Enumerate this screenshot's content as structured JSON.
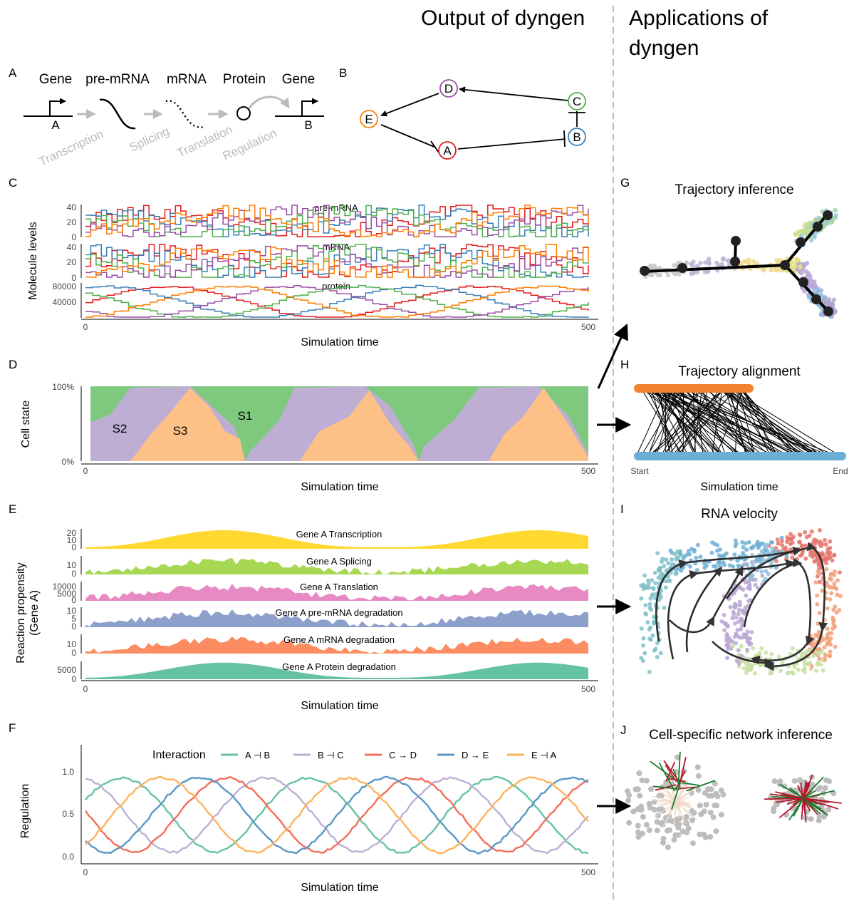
{
  "headers": {
    "output": "Output of dyngen",
    "applications_line1": "Applications of",
    "applications_line2": "dyngen"
  },
  "panel_letters": {
    "A": "A",
    "B": "B",
    "C": "C",
    "D": "D",
    "E": "E",
    "F": "F",
    "G": "G",
    "H": "H",
    "I": "I",
    "J": "J"
  },
  "panel_a": {
    "stages": [
      "Gene",
      "pre-mRNA",
      "mRNA",
      "Protein",
      "Gene"
    ],
    "steps": [
      "Transcription",
      "Splicing",
      "Translation",
      "Regulation"
    ],
    "gene_left": "A",
    "gene_right": "B"
  },
  "panel_b": {
    "nodes": [
      {
        "id": "D",
        "color": "#984ea3"
      },
      {
        "id": "C",
        "color": "#4daf4a"
      },
      {
        "id": "E",
        "color": "#ff7f00"
      },
      {
        "id": "B",
        "color": "#377eb8"
      },
      {
        "id": "A",
        "color": "#e41a1c"
      }
    ],
    "edges": [
      {
        "from": "C",
        "to": "D",
        "type": "activation"
      },
      {
        "from": "D",
        "to": "E",
        "type": "activation"
      },
      {
        "from": "E",
        "to": "A",
        "type": "repression"
      },
      {
        "from": "A",
        "to": "B",
        "type": "repression"
      },
      {
        "from": "B",
        "to": "C",
        "type": "repression"
      }
    ]
  },
  "panel_c": {
    "ylabel": "Molecule levels",
    "xlabel": "Simulation time",
    "x_ticks": [
      "0",
      "500"
    ],
    "facets": [
      {
        "label": "pre-mRNA",
        "ticks": [
          "40",
          "20",
          "0"
        ]
      },
      {
        "label": "mRNA",
        "ticks": [
          "40",
          "20",
          "0"
        ]
      },
      {
        "label": "protein",
        "ticks": [
          "80000",
          "40000"
        ]
      }
    ],
    "series_colors": [
      "#e41a1c",
      "#377eb8",
      "#4daf4a",
      "#984ea3",
      "#ff7f00"
    ]
  },
  "panel_d": {
    "ylabel": "Cell state",
    "xlabel": "Simulation time",
    "y_ticks": [
      "100%",
      "0%"
    ],
    "x_ticks": [
      "0",
      "500"
    ],
    "states": [
      {
        "label": "S1",
        "color": "#7fc97f"
      },
      {
        "label": "S2",
        "color": "#beaed4"
      },
      {
        "label": "S3",
        "color": "#fdc086"
      }
    ]
  },
  "panel_e": {
    "ylabel_line1": "Reaction propensity",
    "ylabel_line2": "(Gene A)",
    "xlabel": "Simulation time",
    "x_ticks": [
      "0",
      "500"
    ],
    "facets": [
      {
        "label": "Gene A Transcription",
        "ticks": [
          "20",
          "10",
          "0"
        ],
        "color": "#ffd92f"
      },
      {
        "label": "Gene A Splicing",
        "ticks": [
          "10",
          "0"
        ],
        "color": "#a6d854"
      },
      {
        "label": "Gene A Translation",
        "ticks": [
          "10000",
          "5000",
          "0"
        ],
        "color": "#e78ac3"
      },
      {
        "label": "Gene A pre-mRNA degradation",
        "ticks": [
          "10",
          "5",
          "0"
        ],
        "color": "#8da0cb"
      },
      {
        "label": "Gene A mRNA degradation",
        "ticks": [
          "10",
          "0"
        ],
        "color": "#fc8d62"
      },
      {
        "label": "Gene A Protein degradation",
        "ticks": [
          "5000",
          "0"
        ],
        "color": "#66c2a5"
      }
    ]
  },
  "panel_f": {
    "ylabel": "Regulation",
    "xlabel": "Simulation time",
    "legend_title": "Interaction",
    "y_ticks": [
      "1.0",
      "0.5",
      "0.0"
    ],
    "x_ticks": [
      "0",
      "500"
    ],
    "series": [
      {
        "name": "A ⊣ B",
        "color": "#66c2a5"
      },
      {
        "name": "B ⊣ C",
        "color": "#beaed4"
      },
      {
        "name": "C → D",
        "color": "#f46d5a"
      },
      {
        "name": "D → E",
        "color": "#5a97c4"
      },
      {
        "name": "E ⊣ A",
        "color": "#fdb35b"
      }
    ]
  },
  "panel_g": {
    "title": "Trajectory inference"
  },
  "panel_h": {
    "title": "Trajectory alignment",
    "xlabel": "Simulation time",
    "start": "Start",
    "end": "End",
    "top_color": "#f58231",
    "bottom_color": "#6baed6"
  },
  "panel_i": {
    "title": "RNA velocity"
  },
  "panel_j": {
    "title": "Cell-specific network inference"
  }
}
